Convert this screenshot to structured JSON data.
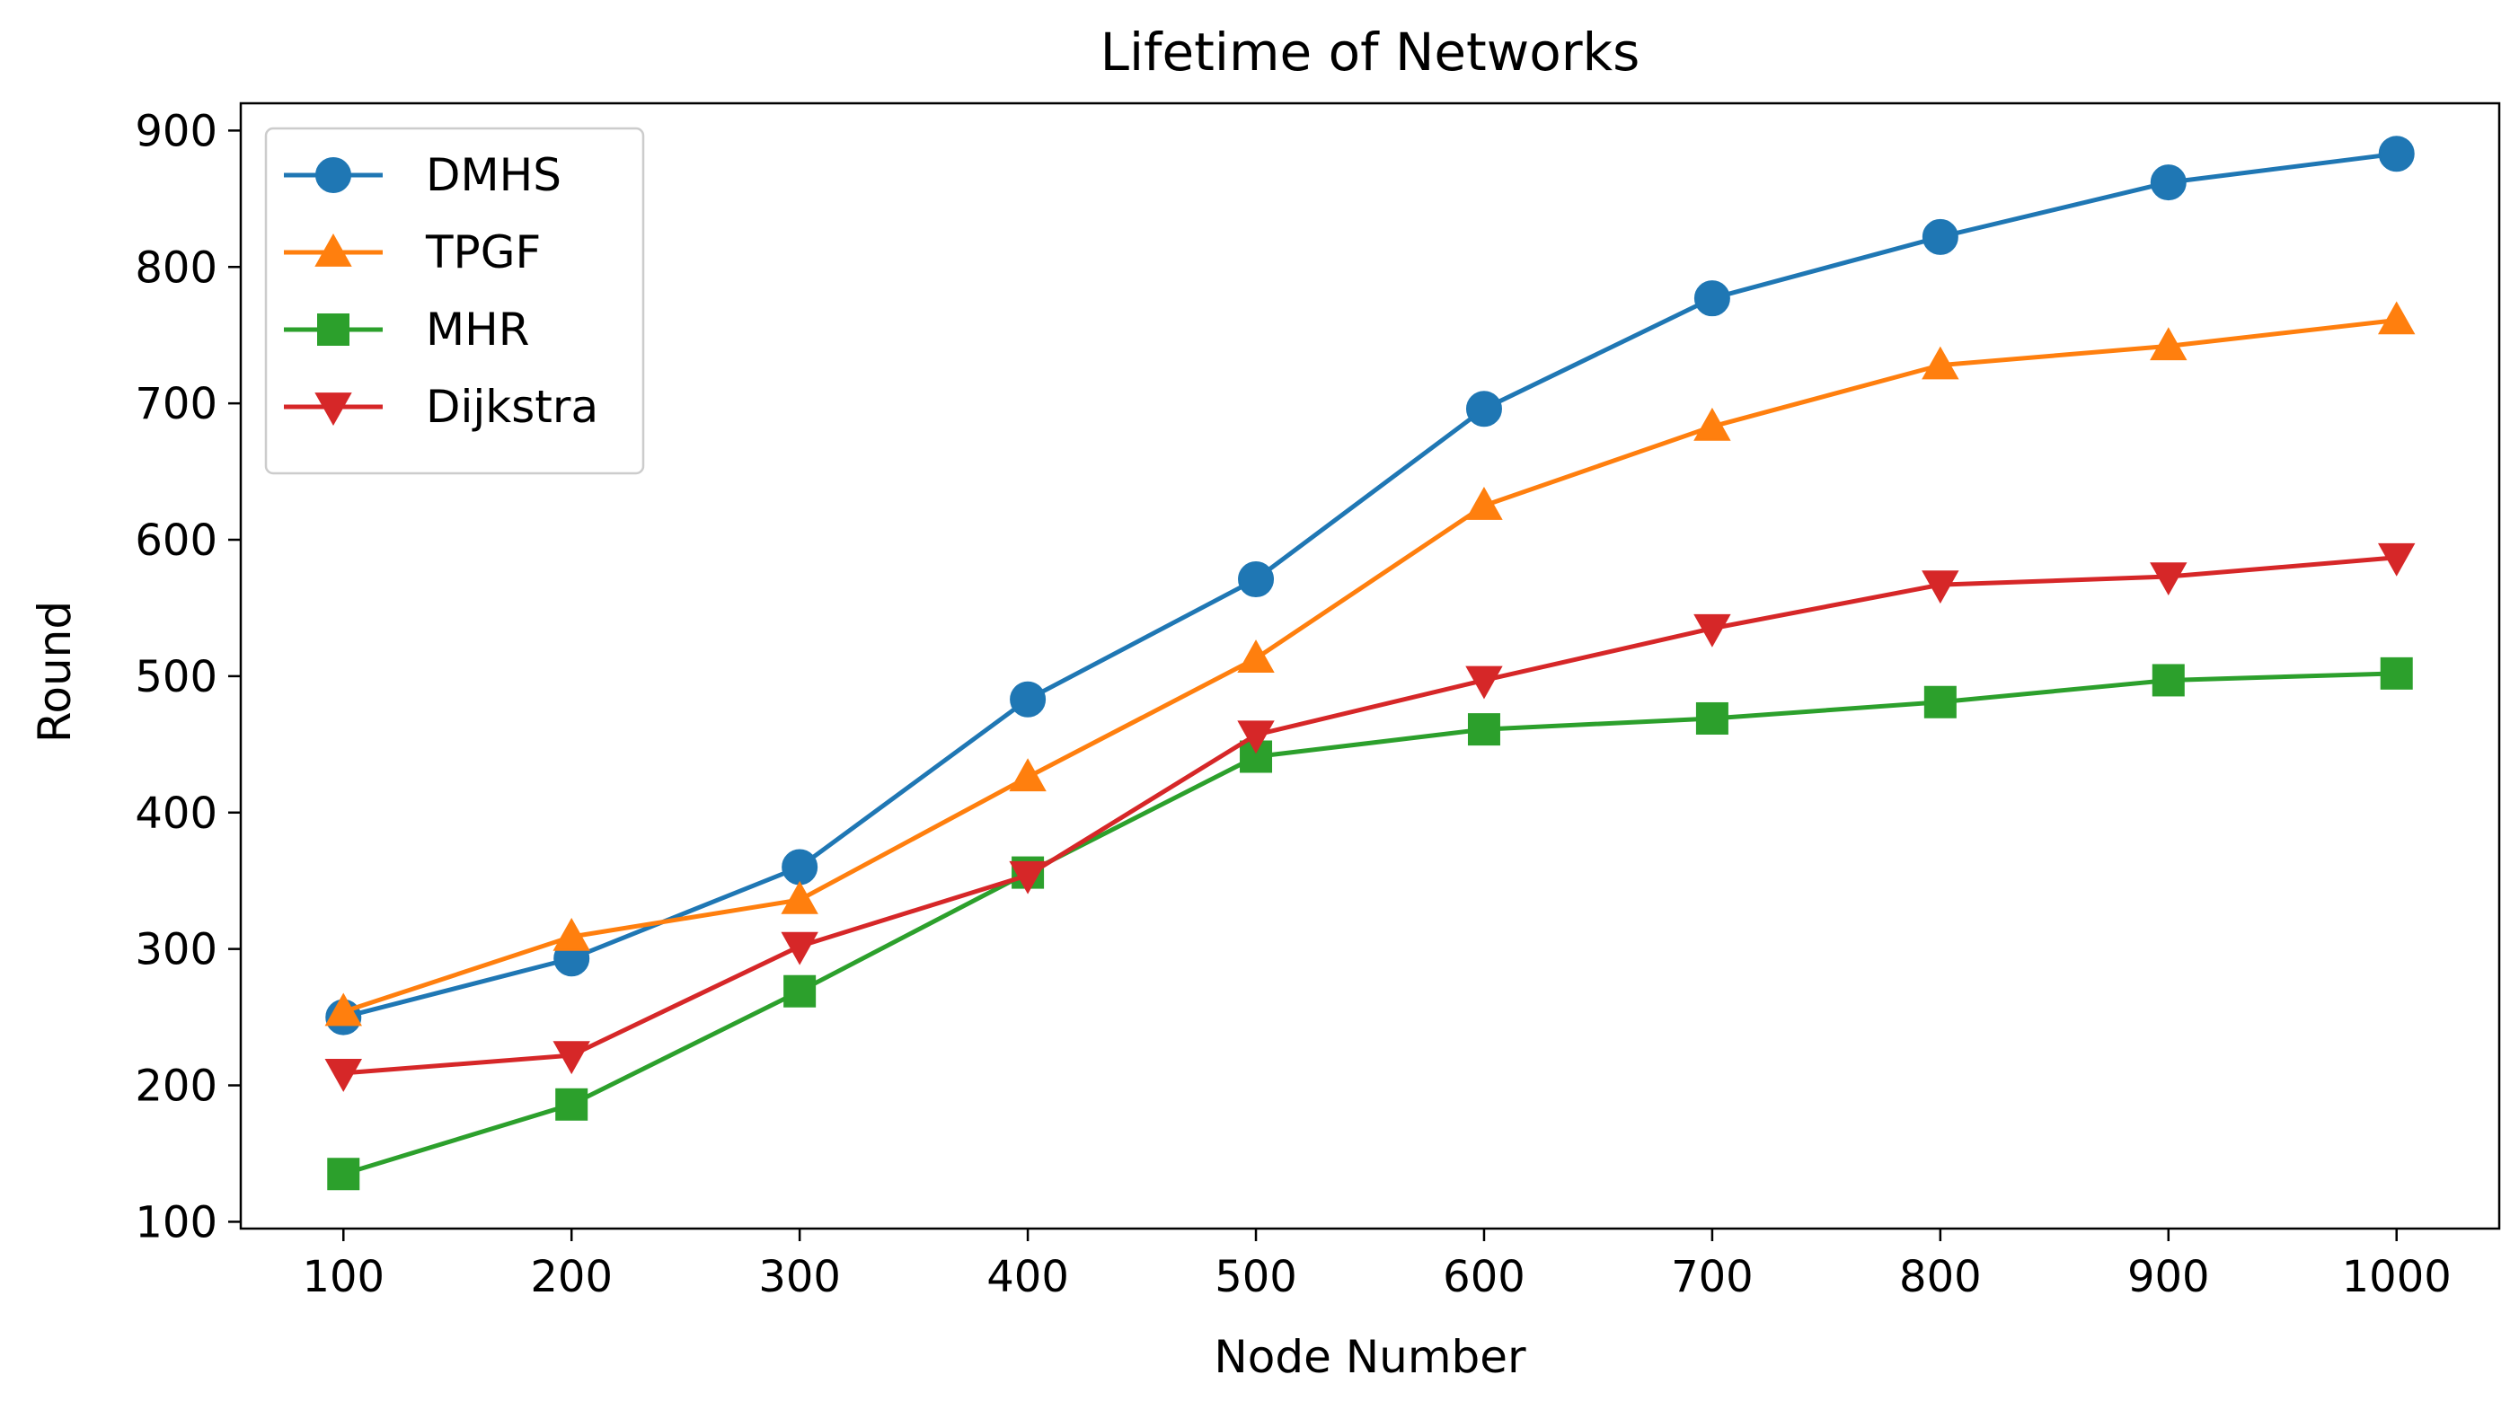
{
  "chart_data": {
    "type": "line",
    "title": "Lifetime of Networks",
    "xlabel": "Node Number",
    "ylabel": "Round",
    "x": [
      100,
      200,
      300,
      400,
      500,
      600,
      700,
      800,
      900,
      1000
    ],
    "xlim": [
      55,
      1045
    ],
    "ylim": [
      95,
      920
    ],
    "xticks": [
      100,
      200,
      300,
      400,
      500,
      600,
      700,
      800,
      900,
      1000
    ],
    "yticks": [
      100,
      200,
      300,
      400,
      500,
      600,
      700,
      800,
      900
    ],
    "grid": false,
    "legend_position": "upper-left",
    "series": [
      {
        "name": "DMHS",
        "color": "#1f77b4",
        "marker": "circle",
        "values": [
          250,
          293,
          360,
          483,
          571,
          696,
          777,
          822,
          862,
          883
        ]
      },
      {
        "name": "TPGF",
        "color": "#ff7f0e",
        "marker": "triangle-up",
        "values": [
          254,
          309,
          336,
          426,
          513,
          625,
          683,
          728,
          742,
          761
        ]
      },
      {
        "name": "MHR",
        "color": "#2ca02c",
        "marker": "square",
        "values": [
          135,
          186,
          269,
          356,
          441,
          461,
          469,
          481,
          497,
          502
        ]
      },
      {
        "name": "Dijkstra",
        "color": "#d62728",
        "marker": "triangle-down",
        "values": [
          209,
          222,
          302,
          354,
          457,
          497,
          535,
          567,
          573,
          587
        ]
      }
    ]
  }
}
